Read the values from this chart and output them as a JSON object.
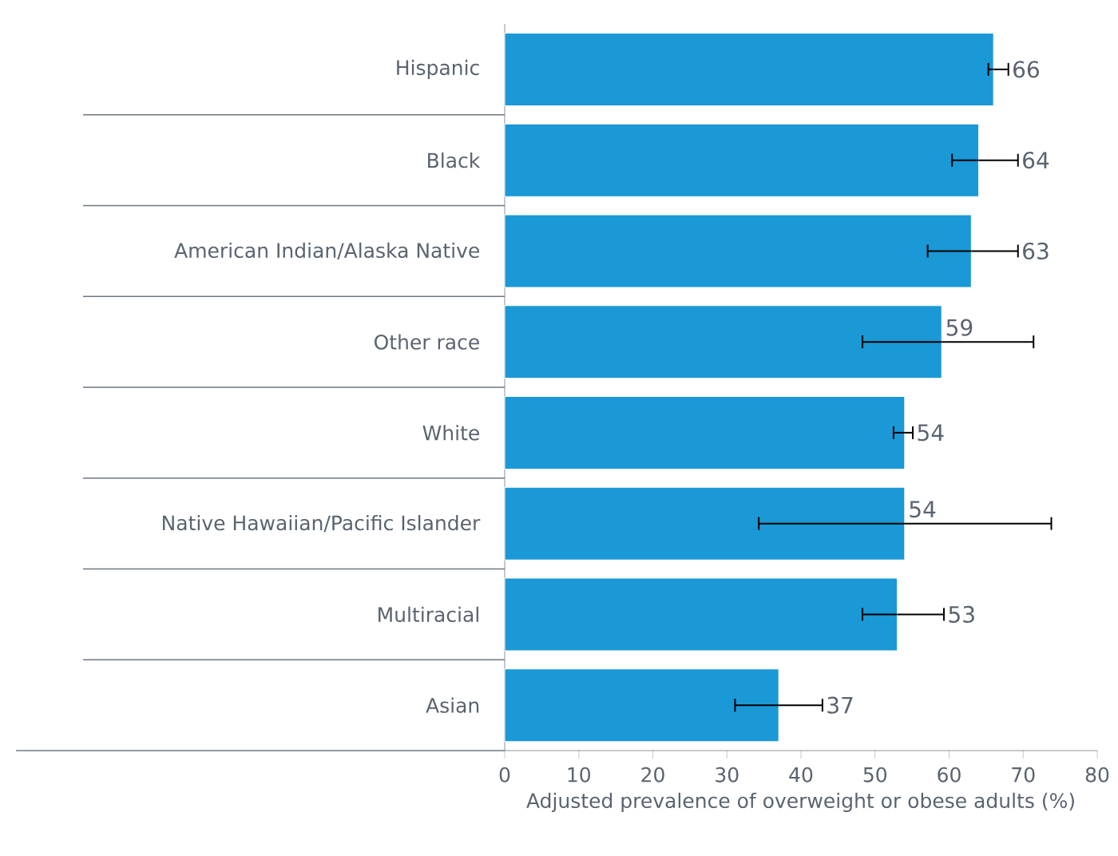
{
  "chart_data": {
    "type": "bar",
    "orientation": "horizontal",
    "xlabel": "Adjusted prevalence of overweight or obese adults (%)",
    "categories": [
      "Hispanic",
      "Black",
      "American Indian/Alaska Native",
      "Other race",
      "White",
      "Native Hawaiian/Pacific Islander",
      "Multiracial",
      "Asian"
    ],
    "values": [
      66,
      64,
      63,
      59,
      54,
      54,
      53,
      37
    ],
    "errors": [
      [
        65.3,
        68.0
      ],
      [
        60.4,
        69.3
      ],
      [
        57.1,
        69.3
      ],
      [
        48.3,
        71.4
      ],
      [
        52.5,
        55.1
      ],
      [
        34.3,
        73.8
      ],
      [
        48.3,
        59.3
      ],
      [
        31.1,
        42.9
      ]
    ],
    "color": "#1b98d6",
    "data_labels": true,
    "xlim": [
      0,
      80
    ],
    "xticks": [
      0,
      10,
      20,
      30,
      40,
      50,
      60,
      70,
      80
    ]
  }
}
